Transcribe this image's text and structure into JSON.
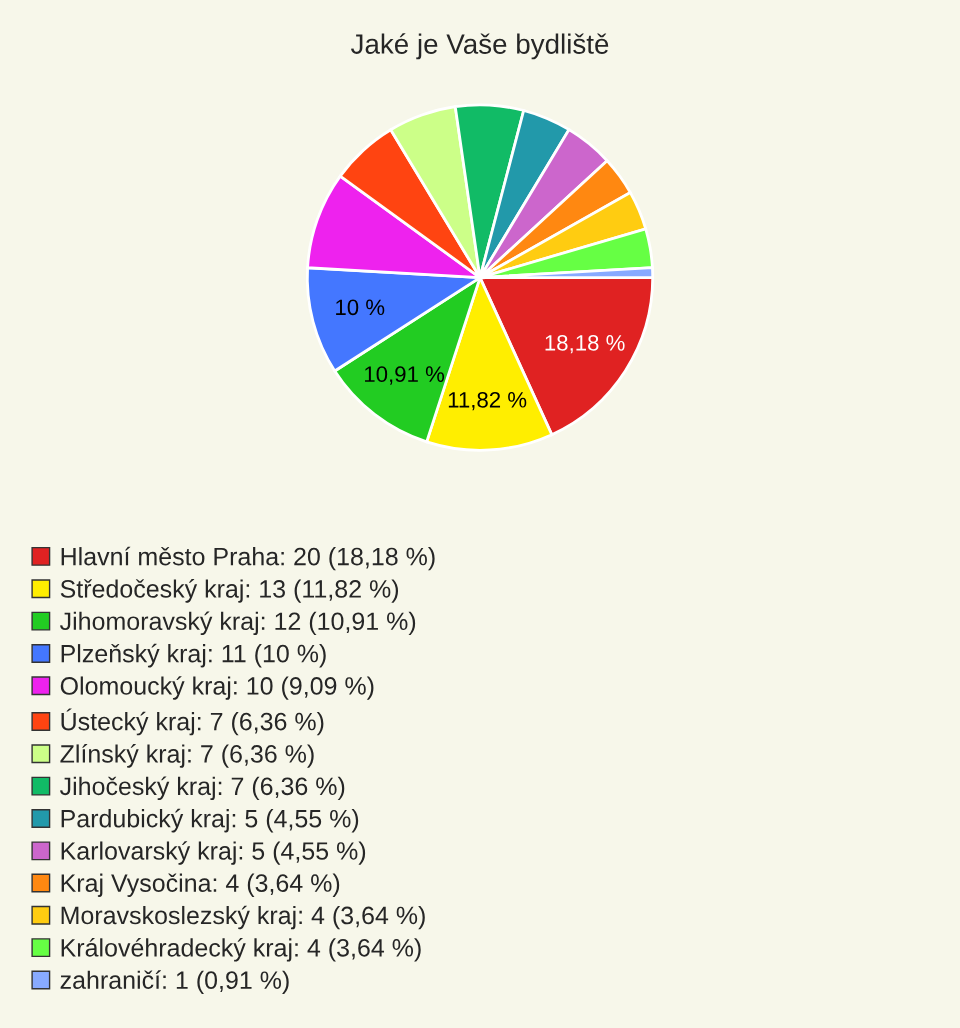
{
  "chart_data": {
    "type": "pie",
    "title": "Jaké je Vaše bydliště",
    "categories": [
      "Hlavní město Praha: 20 (18,18 %)",
      "Středočeský kraj: 13 (11,82 %)",
      "Jihomoravský kraj: 12 (10,91 %)",
      "Plzeňský kraj: 11 (10 %)",
      "Olomoucký kraj: 10 (9,09 %)",
      "Ústecký kraj: 7 (6,36 %)",
      "Zlínský kraj: 7 (6,36 %)",
      "Jihočeský kraj: 7 (6,36 %)",
      "Pardubický kraj: 5 (4,55 %)",
      "Karlovarský kraj: 5 (4,55 %)",
      "Kraj Vysočina: 4 (3,64 %)",
      "Moravskoslezský kraj: 4 (3,64 %)",
      "Královéhradecký kraj: 4 (3,64 %)",
      "zahraničí: 1 (0,91 %)"
    ],
    "values": [
      18.18,
      11.82,
      10.91,
      10,
      9.09,
      6.36,
      6.36,
      6.36,
      4.55,
      4.55,
      3.64,
      3.64,
      3.64,
      0.91
    ],
    "value_labels": [
      "18,18 %",
      "11,82 %",
      "10,91 %",
      "10 %",
      null,
      null,
      null,
      null,
      null,
      null,
      null,
      null,
      null,
      null
    ],
    "colors": [
      "#e02222",
      "#ffee00",
      "#22cc22",
      "#4477ff",
      "#ee22ee",
      "#ff4411",
      "#ccff88",
      "#11bb66",
      "#2299aa",
      "#cc66cc",
      "#ff8811",
      "#ffcc11",
      "#66ff44",
      "#88aaff"
    ],
    "legend": "bottom"
  }
}
